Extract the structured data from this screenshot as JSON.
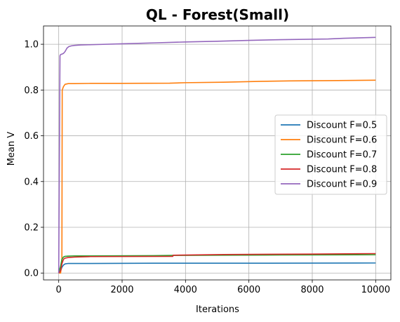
{
  "chart_data": {
    "type": "line",
    "title": "QL - Forest(Small)",
    "xlabel": "Iterations",
    "ylabel": "Mean V",
    "xlim": [
      -480,
      10480
    ],
    "ylim": [
      -0.03,
      1.08
    ],
    "xticks": [
      0,
      2000,
      4000,
      6000,
      8000,
      10000
    ],
    "xtick_labels": [
      "0",
      "2000",
      "4000",
      "6000",
      "8000",
      "10000"
    ],
    "yticks": [
      0.0,
      0.2,
      0.4,
      0.6,
      0.8,
      1.0
    ],
    "ytick_labels": [
      "0.0",
      "0.2",
      "0.4",
      "0.6",
      "0.8",
      "1.0"
    ],
    "grid": true,
    "legend_position": "center-right",
    "series": [
      {
        "name": "Discount F=0.5",
        "color": "#1f77b4",
        "x": [
          0,
          60,
          100,
          150,
          200,
          300,
          500,
          1000,
          3000,
          6000,
          10000
        ],
        "y": [
          0.0,
          0.01,
          0.025,
          0.035,
          0.04,
          0.042,
          0.042,
          0.042,
          0.043,
          0.043,
          0.044
        ]
      },
      {
        "name": "Discount F=0.6",
        "color": "#ff7f0e",
        "x": [
          0,
          60,
          100,
          110,
          150,
          200,
          300,
          500,
          1000,
          2000,
          3500,
          4000,
          5200,
          6400,
          7300,
          8500,
          10000
        ],
        "y": [
          0.0,
          0.0,
          0.05,
          0.8,
          0.815,
          0.825,
          0.828,
          0.828,
          0.829,
          0.829,
          0.83,
          0.832,
          0.834,
          0.838,
          0.84,
          0.841,
          0.843
        ]
      },
      {
        "name": "Discount F=0.7",
        "color": "#2ca02c",
        "x": [
          0,
          60,
          100,
          150,
          200,
          300,
          500,
          1000,
          3000,
          3600,
          5000,
          7000,
          10000
        ],
        "y": [
          0.0,
          0.03,
          0.06,
          0.07,
          0.073,
          0.074,
          0.075,
          0.075,
          0.076,
          0.077,
          0.078,
          0.079,
          0.08
        ]
      },
      {
        "name": "Discount F=0.8",
        "color": "#d62728",
        "x": [
          0,
          60,
          100,
          150,
          200,
          300,
          500,
          1000,
          3600,
          3610,
          5200,
          8000,
          10000
        ],
        "y": [
          0.0,
          0.01,
          0.04,
          0.06,
          0.065,
          0.068,
          0.07,
          0.072,
          0.073,
          0.078,
          0.081,
          0.083,
          0.085
        ]
      },
      {
        "name": "Discount F=0.9",
        "color": "#9467bd",
        "x": [
          0,
          20,
          40,
          60,
          100,
          150,
          200,
          260,
          320,
          400,
          500,
          700,
          1000,
          2000,
          3000,
          4000,
          5000,
          6000,
          7000,
          8500,
          9000,
          10000
        ],
        "y": [
          0.0,
          0.5,
          0.95,
          0.955,
          0.957,
          0.96,
          0.968,
          0.983,
          0.99,
          0.993,
          0.995,
          0.997,
          0.998,
          1.002,
          1.006,
          1.01,
          1.013,
          1.017,
          1.02,
          1.023,
          1.026,
          1.03
        ]
      }
    ]
  }
}
